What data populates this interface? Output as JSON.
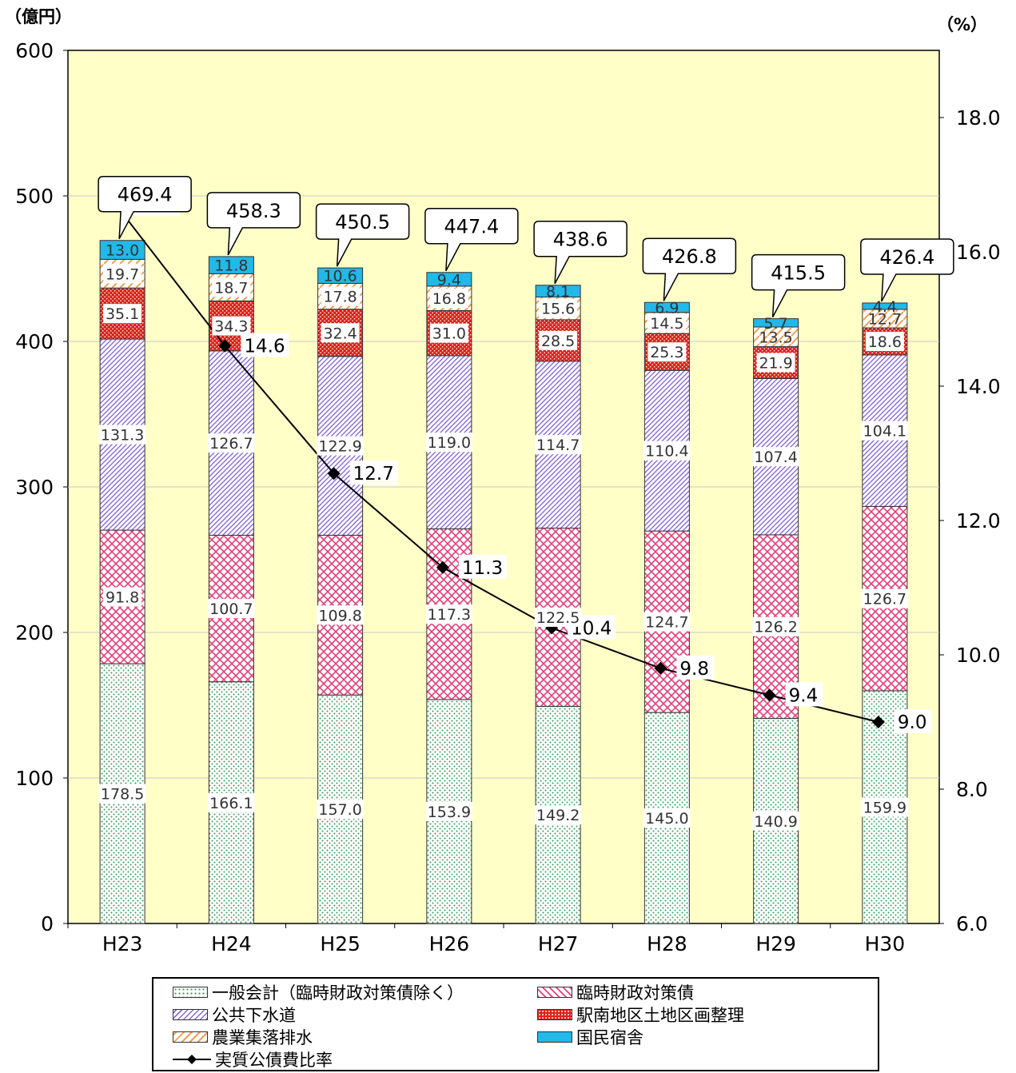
{
  "chart_data": {
    "type": "bar",
    "stacked": true,
    "categories": [
      "H23",
      "H24",
      "H25",
      "H26",
      "H27",
      "H28",
      "H29",
      "H30"
    ],
    "left_axis": {
      "unit": "（億円）",
      "ylim": [
        0,
        600
      ],
      "ticks": [
        "0",
        "100",
        "200",
        "300",
        "400",
        "500",
        "600"
      ]
    },
    "right_axis": {
      "unit": "（%）",
      "ylim": [
        6.0,
        19.0
      ],
      "ticks": [
        "6.0",
        "8.0",
        "10.0",
        "12.0",
        "14.0",
        "16.0",
        "18.0"
      ]
    },
    "series": [
      {
        "name": "一般会計（臨時財政対策債除く）",
        "pattern": "dots-green",
        "color": "#3a9a5a",
        "values": [
          178.5,
          166.1,
          157.0,
          153.9,
          149.2,
          145.0,
          140.9,
          159.9
        ],
        "labels": [
          "178.5",
          "166.1",
          "157.0",
          "153.9",
          "149.2",
          "145.0",
          "140.9",
          "159.9"
        ]
      },
      {
        "name": "臨時財政対策債",
        "pattern": "cross-pink",
        "color": "#e0407a",
        "values": [
          91.8,
          100.7,
          109.8,
          117.3,
          122.5,
          124.7,
          126.2,
          126.7
        ],
        "labels": [
          "91.8",
          "100.7",
          "109.8",
          "117.3",
          "122.5",
          "124.7",
          "126.2",
          "126.7"
        ]
      },
      {
        "name": "公共下水道",
        "pattern": "diag-purple",
        "color": "#8a6ad8",
        "values": [
          131.3,
          126.7,
          122.9,
          119.0,
          114.7,
          110.4,
          107.4,
          104.1
        ],
        "labels": [
          "131.3",
          "126.7",
          "122.9",
          "119.0",
          "114.7",
          "110.4",
          "107.4",
          "104.1"
        ]
      },
      {
        "name": "駅南地区土地区画整理",
        "pattern": "dots-red",
        "color": "#e0201a",
        "values": [
          35.1,
          34.3,
          32.4,
          31.0,
          28.5,
          25.3,
          21.9,
          18.6
        ],
        "labels": [
          "35.1",
          "34.3",
          "32.4",
          "31.0",
          "28.5",
          "25.3",
          "21.9",
          "18.6"
        ]
      },
      {
        "name": "農業集落排水",
        "pattern": "diag-orange",
        "color": "#f0a050",
        "values": [
          19.7,
          18.7,
          17.8,
          16.8,
          15.6,
          14.5,
          13.5,
          12.7
        ],
        "labels": [
          "19.7",
          "18.7",
          "17.8",
          "16.8",
          "15.6",
          "14.5",
          "13.5",
          "12.7"
        ]
      },
      {
        "name": "国民宿舎",
        "pattern": "solid-cyan",
        "color": "#22b8e8",
        "values": [
          13.0,
          11.8,
          10.6,
          9.4,
          8.1,
          6.9,
          5.7,
          4.4
        ],
        "labels": [
          "13.0",
          "11.8",
          "10.6",
          "9.4",
          "8.1",
          "6.9",
          "5.7",
          "4.4"
        ]
      }
    ],
    "totals": [
      "469.4",
      "458.3",
      "450.5",
      "447.4",
      "438.6",
      "426.8",
      "415.5",
      "426.4"
    ],
    "line_series": {
      "name": "実質公債費比率",
      "axis": "right",
      "values": [
        16.7,
        14.6,
        12.7,
        11.3,
        10.4,
        9.8,
        9.4,
        9.0
      ],
      "labels": [
        "16.7",
        "14.6",
        "12.7",
        "11.3",
        "10.4",
        "9.8",
        "9.4",
        "9.0"
      ]
    },
    "plot_background": "#ffffc8",
    "grid": true,
    "legend_position": "bottom"
  },
  "legend": {
    "items": [
      {
        "label": "一般会計（臨時財政対策債除く）",
        "pattern": "dots-green"
      },
      {
        "label": "臨時財政対策債",
        "pattern": "cross-pink"
      },
      {
        "label": "公共下水道",
        "pattern": "diag-purple"
      },
      {
        "label": "駅南地区土地区画整理",
        "pattern": "dots-red"
      },
      {
        "label": "農業集落排水",
        "pattern": "diag-orange"
      },
      {
        "label": "国民宿舎",
        "pattern": "solid-cyan"
      },
      {
        "label": "実質公債費比率",
        "pattern": "line-marker"
      }
    ]
  }
}
